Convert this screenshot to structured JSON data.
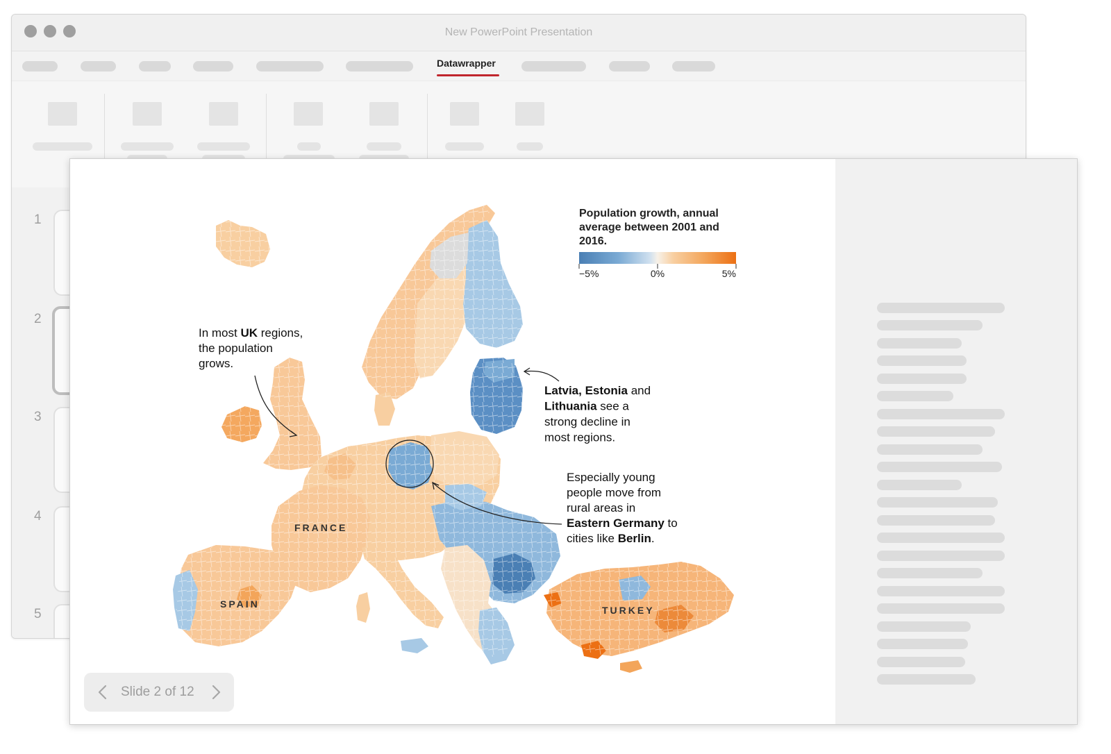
{
  "window": {
    "title": "New PowerPoint Presentation"
  },
  "menu": {
    "active_tab": "Datawrapper"
  },
  "slides": {
    "numbers": [
      "1",
      "2",
      "3",
      "4",
      "5"
    ],
    "active": "2"
  },
  "navigator": {
    "label": "Slide 2 of 12",
    "prev_icon": "chevron-left-icon",
    "next_icon": "chevron-right-icon"
  },
  "colors": {
    "accent_underline": "#c0262d",
    "decline_strong": "#4a7fb4",
    "decline_light": "#a7c9e5",
    "neutral": "#e0e0e0",
    "growth_light": "#f8cfa1",
    "growth_strong": "#ec7014"
  },
  "map": {
    "legend": {
      "title": "Population growth, annual average between 2001 and 2016.",
      "title_lines": [
        "Population growth, annual",
        "average between 2001 and",
        "2016."
      ],
      "ticks": [
        "−5%",
        "0%",
        "5%"
      ]
    },
    "country_labels": [
      "FRANCE",
      "SPAIN",
      "TURKEY"
    ],
    "annotations": {
      "uk": {
        "lines": [
          [
            {
              "t": "In most ",
              "b": false
            },
            {
              "t": "UK",
              "b": true
            },
            {
              "t": " regions,",
              "b": false
            }
          ],
          [
            {
              "t": "the population",
              "b": false
            }
          ],
          [
            {
              "t": "grows.",
              "b": false
            }
          ]
        ]
      },
      "baltics": {
        "lines": [
          [
            {
              "t": "Latvia, Estonia",
              "b": true
            },
            {
              "t": " and",
              "b": false
            }
          ],
          [
            {
              "t": "Lithuania",
              "b": true
            },
            {
              "t": " see a",
              "b": false
            }
          ],
          [
            {
              "t": "strong decline in",
              "b": false
            }
          ],
          [
            {
              "t": "most regions.",
              "b": false
            }
          ]
        ]
      },
      "germany": {
        "lines": [
          [
            {
              "t": "Especially young",
              "b": false
            }
          ],
          [
            {
              "t": "people move from",
              "b": false
            }
          ],
          [
            {
              "t": "rural areas in",
              "b": false
            }
          ],
          [
            {
              "t": "Eastern Germany",
              "b": true
            },
            {
              "t": " to",
              "b": false
            }
          ],
          [
            {
              "t": "cities like ",
              "b": false
            },
            {
              "t": "Berlin",
              "b": true
            },
            {
              "t": ".",
              "b": false
            }
          ]
        ]
      }
    }
  }
}
